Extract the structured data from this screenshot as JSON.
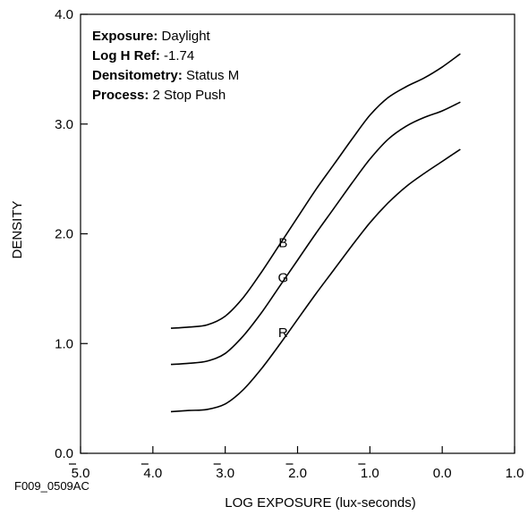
{
  "figure_id": "F009_0509AC",
  "info": [
    {
      "key": "Exposure:",
      "value": "Daylight"
    },
    {
      "key": "Log H Ref:",
      "value": "-1.74"
    },
    {
      "key": "Densitometry:",
      "value": "Status M"
    },
    {
      "key": "Process:",
      "value": "2 Stop Push"
    }
  ],
  "chart_data": {
    "type": "line",
    "title": "",
    "xlabel": "LOG EXPOSURE (lux-seconds)",
    "ylabel": "DENSITY",
    "xlim": [
      -5.0,
      1.0
    ],
    "ylim": [
      0.0,
      4.0
    ],
    "x_ticks": [
      {
        "value": -5.0,
        "label": "5.0",
        "bar": true
      },
      {
        "value": -4.0,
        "label": "4.0",
        "bar": true
      },
      {
        "value": -3.0,
        "label": "3.0",
        "bar": true
      },
      {
        "value": -2.0,
        "label": "2.0",
        "bar": true
      },
      {
        "value": -1.0,
        "label": "1.0",
        "bar": true
      },
      {
        "value": 0.0,
        "label": "0.0",
        "bar": false
      },
      {
        "value": 1.0,
        "label": "1.0",
        "bar": false
      }
    ],
    "y_ticks": [
      {
        "value": 0.0,
        "label": "0.0"
      },
      {
        "value": 1.0,
        "label": "1.0"
      },
      {
        "value": 2.0,
        "label": "2.0"
      },
      {
        "value": 3.0,
        "label": "3.0"
      },
      {
        "value": 4.0,
        "label": "4.0"
      }
    ],
    "grid": false,
    "series": [
      {
        "name": "B",
        "label_at": [
          -2.2,
          1.92
        ],
        "points": [
          [
            -3.75,
            1.14
          ],
          [
            -3.5,
            1.15
          ],
          [
            -3.25,
            1.17
          ],
          [
            -3.0,
            1.25
          ],
          [
            -2.75,
            1.42
          ],
          [
            -2.5,
            1.65
          ],
          [
            -2.25,
            1.9
          ],
          [
            -2.0,
            2.15
          ],
          [
            -1.75,
            2.4
          ],
          [
            -1.5,
            2.63
          ],
          [
            -1.25,
            2.86
          ],
          [
            -1.0,
            3.08
          ],
          [
            -0.75,
            3.24
          ],
          [
            -0.5,
            3.34
          ],
          [
            -0.25,
            3.42
          ],
          [
            0.0,
            3.52
          ],
          [
            0.25,
            3.64
          ]
        ]
      },
      {
        "name": "G",
        "label_at": [
          -2.2,
          1.6
        ],
        "points": [
          [
            -3.75,
            0.81
          ],
          [
            -3.5,
            0.82
          ],
          [
            -3.25,
            0.84
          ],
          [
            -3.0,
            0.91
          ],
          [
            -2.75,
            1.07
          ],
          [
            -2.5,
            1.28
          ],
          [
            -2.25,
            1.52
          ],
          [
            -2.0,
            1.76
          ],
          [
            -1.75,
            2.0
          ],
          [
            -1.5,
            2.23
          ],
          [
            -1.25,
            2.46
          ],
          [
            -1.0,
            2.68
          ],
          [
            -0.75,
            2.86
          ],
          [
            -0.5,
            2.98
          ],
          [
            -0.25,
            3.06
          ],
          [
            0.0,
            3.12
          ],
          [
            0.25,
            3.2
          ]
        ]
      },
      {
        "name": "R",
        "label_at": [
          -2.2,
          1.1
        ],
        "points": [
          [
            -3.75,
            0.38
          ],
          [
            -3.5,
            0.39
          ],
          [
            -3.25,
            0.4
          ],
          [
            -3.0,
            0.45
          ],
          [
            -2.75,
            0.58
          ],
          [
            -2.5,
            0.77
          ],
          [
            -2.25,
            0.99
          ],
          [
            -2.0,
            1.22
          ],
          [
            -1.75,
            1.45
          ],
          [
            -1.5,
            1.67
          ],
          [
            -1.25,
            1.89
          ],
          [
            -1.0,
            2.1
          ],
          [
            -0.75,
            2.28
          ],
          [
            -0.5,
            2.43
          ],
          [
            -0.25,
            2.55
          ],
          [
            0.0,
            2.66
          ],
          [
            0.25,
            2.77
          ]
        ]
      }
    ]
  }
}
